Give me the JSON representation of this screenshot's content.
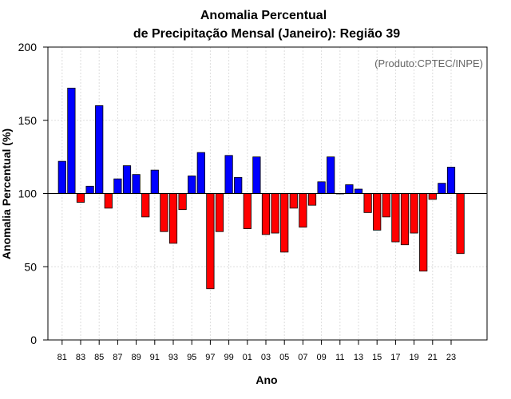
{
  "chart_data": {
    "type": "bar",
    "title_line1": "Anomalia Percentual",
    "title_line2": "de Precipitação Mensal (Janeiro): Região 39",
    "xlabel": "Ano",
    "ylabel": "Anomalia Percentual (%)",
    "credit": "(Produto:CPTEC/INPE)",
    "baseline": 100,
    "ylim": [
      0,
      200
    ],
    "yticks": [
      0,
      50,
      100,
      150,
      200
    ],
    "xtick_labels": [
      "81",
      "83",
      "85",
      "87",
      "89",
      "91",
      "93",
      "95",
      "97",
      "99",
      "01",
      "03",
      "05",
      "07",
      "09",
      "11",
      "13",
      "15",
      "17",
      "19",
      "21",
      "23"
    ],
    "categories": [
      "1981",
      "1982",
      "1983",
      "1984",
      "1985",
      "1986",
      "1987",
      "1988",
      "1989",
      "1990",
      "1991",
      "1992",
      "1993",
      "1994",
      "1995",
      "1996",
      "1997",
      "1998",
      "1999",
      "2000",
      "2001",
      "2002",
      "2003",
      "2004",
      "2005",
      "2006",
      "2007",
      "2008",
      "2009",
      "2010",
      "2011",
      "2012",
      "2013",
      "2014",
      "2015",
      "2016",
      "2017",
      "2018",
      "2019",
      "2020",
      "2021",
      "2022",
      "2023",
      "2024"
    ],
    "values": [
      122,
      172,
      94,
      105,
      160,
      90,
      110,
      119,
      113,
      84,
      116,
      74,
      66,
      89,
      112,
      128,
      35,
      74,
      126,
      111,
      76,
      125,
      72,
      73,
      60,
      90,
      77,
      92,
      108,
      125,
      100,
      106,
      103,
      87,
      75,
      84,
      67,
      65,
      73,
      47,
      96,
      107,
      118,
      59
    ],
    "colors": {
      "above": "#0000ff",
      "below": "#ff0000"
    }
  }
}
